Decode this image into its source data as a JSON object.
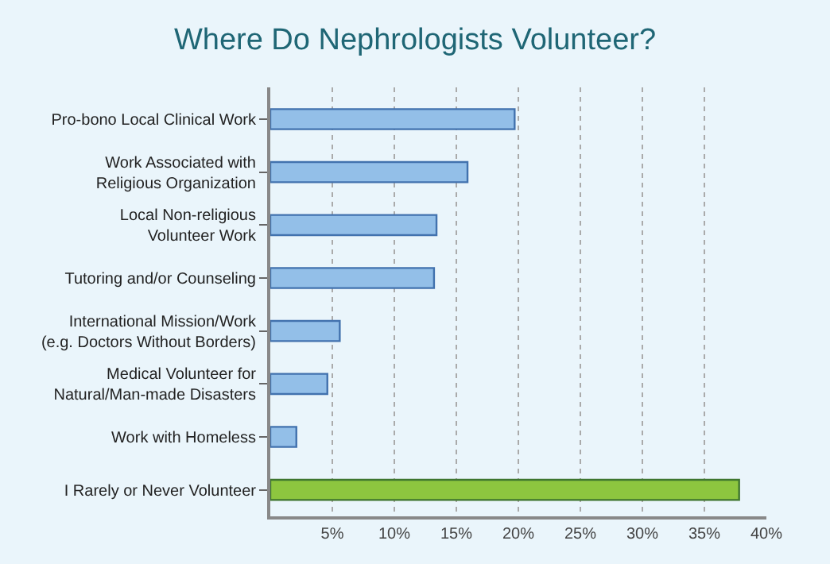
{
  "chart_data": {
    "type": "bar",
    "orientation": "horizontal",
    "title": "Where Do Nephrologists Volunteer?",
    "categories": [
      "Pro-bono Local Clinical Work",
      "Work Associated with\nReligious Organization",
      "Local Non-religious\nVolunteer Work",
      "Tutoring and/or Counseling",
      "International Mission/Work\n(e.g. Doctors Without Borders)",
      "Medical Volunteer for\nNatural/Man-made Disasters",
      "Work with Homeless",
      "I Rarely or Never Volunteer"
    ],
    "values": [
      19.7,
      15.9,
      13.4,
      13.2,
      5.6,
      4.6,
      2.1,
      37.8
    ],
    "colors": [
      "#93bfe8",
      "#93bfe8",
      "#93bfe8",
      "#93bfe8",
      "#93bfe8",
      "#93bfe8",
      "#93bfe8",
      "#8dc63f"
    ],
    "xlim": [
      0,
      40
    ],
    "xticks": [
      {
        "value": 5,
        "label": "5%"
      },
      {
        "value": 10,
        "label": "10%"
      },
      {
        "value": 15,
        "label": "15%"
      },
      {
        "value": 20,
        "label": "20%"
      },
      {
        "value": 25,
        "label": "25%"
      },
      {
        "value": 30,
        "label": "30%"
      },
      {
        "value": 35,
        "label": "35%"
      },
      {
        "value": 40,
        "label": "40%"
      }
    ],
    "grid": "x",
    "legend": false
  }
}
